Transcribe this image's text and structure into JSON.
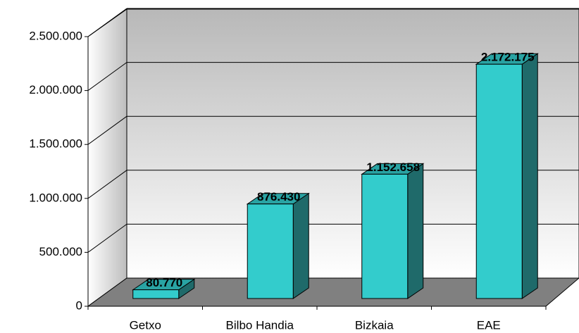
{
  "chart_data": {
    "type": "bar",
    "categories": [
      "Getxo",
      "Bilbo Handia",
      "Bizkaia",
      "EAE"
    ],
    "values": [
      80770,
      876430,
      1152658,
      2172175
    ],
    "value_labels": [
      "80.770",
      "876.430",
      "1.152.658",
      "2.172.175"
    ],
    "color": "#33cccc",
    "ylim": [
      0,
      2500000
    ],
    "yticks": [
      0,
      {
        "value": 500000,
        "label": "500.000"
      },
      {
        "value": 1000000,
        "label": "1.000.000"
      },
      {
        "value": 1500000,
        "label": "1.500.000"
      },
      {
        "value": 2000000,
        "label": "2.000.000"
      },
      {
        "value": 2500000,
        "label": "2.500.000"
      }
    ],
    "grid": true
  }
}
